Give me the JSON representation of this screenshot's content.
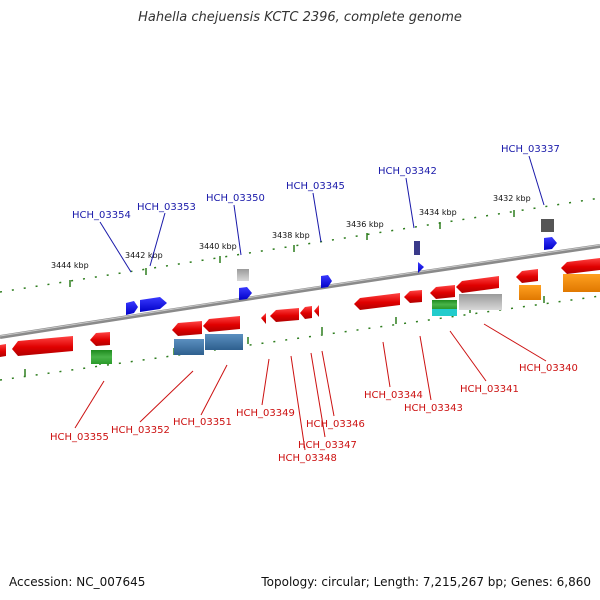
{
  "title": "Hahella chejuensis KCTC 2396, complete genome",
  "footer": {
    "accession": "Accession: NC_007645",
    "summary": "Topology: circular; Length: 7,215,267 bp; Genes: 6,860"
  },
  "colors": {
    "backbone": "#808080",
    "forward_label": "#1a1aaa",
    "reverse_label": "#cc1111",
    "tick": "#2e7d1e"
  },
  "kbp_labels": [
    "3444 kbp",
    "3442 kbp",
    "3440 kbp",
    "3438 kbp",
    "3436 kbp",
    "3434 kbp",
    "3432 kbp"
  ],
  "forward_gene_labels": [
    "HCH_03354",
    "HCH_03353",
    "HCH_03350",
    "HCH_03345",
    "HCH_03342",
    "HCH_03337"
  ],
  "reverse_gene_labels": [
    "HCH_03355",
    "HCH_03352",
    "HCH_03351",
    "HCH_03349",
    "HCH_03348",
    "HCH_03347",
    "HCH_03346",
    "HCH_03344",
    "HCH_03343",
    "HCH_03341",
    "HCH_03340"
  ]
}
